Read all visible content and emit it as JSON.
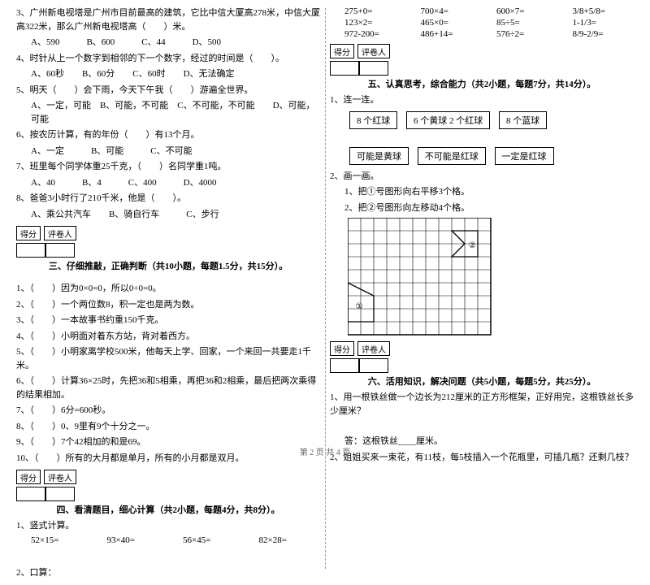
{
  "leftCol": {
    "q3": "3、广州新电视塔是广州市目前最高的建筑，它比中信大厦高278米，中信大厦高322米，那么广州新电视塔高（　　）米。",
    "q3opts": "A、590　　　B、600　　　C、44　　　D、500",
    "q4": "4、时针从上一个数字到相邻的下一个数字，经过的时间是（　　）。",
    "q4opts": "A、60秒　　B、60分　　C、60时　　D、无法确定",
    "q5": "5、明天（　　）会下雨，今天下午我（　　）游遍全世界。",
    "q5opts": "A、一定，可能　B、可能，不可能　C、不可能，不可能　　D、可能，可能",
    "q6": "6、按农历计算，有的年份（　　）有13个月。",
    "q6opts": "A、一定　　　B、可能　　　C、不可能",
    "q7": "7、班里每个同学体重25千克，（　　）名同学重1吨。",
    "q7opts": "A、40　　　B、4　　　C、400　　　D、4000",
    "q8": "8、爸爸3小时行了210千米，他是（　　）。",
    "q8opts": "A、乘公共汽车　　B、骑自行车　　　C、步行",
    "sec3_title": "三、仔细推敲，正确判断（共10小题，每题1.5分，共15分）。",
    "j1": "1、（　　）因为0×0=0，所以0÷0=0。",
    "j2": "2、（　　）一个两位数8，积一定也是两为数。",
    "j3": "3、（　　）一本故事书约重150千克。",
    "j4": "4、（　　）小明面对着东方站，背对着西方。",
    "j5": "5、（　　）小明家离学校500米，他每天上学、回家，一个来回一共要走1千米。",
    "j6": "6、（　　）计算36×25时，先把36和5相乘，再把36和2相乘，最后把两次乘得的结果相加。",
    "j7": "7、（　　）6分=600秒。",
    "j8": "8、（　　）0、9里有9个十分之一。",
    "j9": "9、（　　）7个42相加的和是69。",
    "j10": "10、（　　）所有的大月都是单月，所有的小月都是双月。",
    "sec4_title": "四、看清题目，细心计算（共2小题，每题4分，共8分）。",
    "c1_label": "1、竖式计算。",
    "c1_items": [
      "52×15=",
      "93×40=",
      "56×45=",
      "82×28="
    ],
    "c2_label": "2、口算："
  },
  "rightCol": {
    "calc_rows": [
      [
        "275+0=",
        "700×4=",
        "600×7=",
        "3/8+5/8="
      ],
      [
        "123×2=",
        "465×0=",
        "85÷5=",
        "1-1/3="
      ],
      [
        "972-200=",
        "486+14=",
        "576÷2=",
        "8/9-2/9="
      ]
    ],
    "sec5_title": "五、认真思考，综合能力（共2小题，每题7分，共14分）。",
    "l1_label": "1、连一连。",
    "l1_row1": [
      "8 个红球",
      "6 个黄球 2 个红球",
      "8 个蓝球"
    ],
    "l1_row2": [
      "可能是黄球",
      "不可能是红球",
      "一定是红球"
    ],
    "l2_label": "2、画一画。",
    "l2_a": "1、把①号图形向右平移3个格。",
    "l2_b": "2、把②号图形向左移动4个格。",
    "sec6_title": "六、活用知识，解决问题（共5小题，每题5分，共25分）。",
    "p1": "1、用一根铁丝做一个边长为212厘米的正方形框架，正好用完，这根铁丝长多少厘米？",
    "p1_ans": "答：这根铁丝____厘米。",
    "p2": "2、姐姐买来一束花，有11枝，每5枝插入一个花瓶里，可插几瓶？还剩几枝？"
  },
  "score_labels": {
    "score": "得分",
    "grader": "评卷人"
  },
  "footer": "第 2 页 共 4 页",
  "grid": {
    "cols": 11,
    "rows": 9,
    "cell": 16,
    "shape2_label": "②",
    "shape1_label": "①"
  }
}
